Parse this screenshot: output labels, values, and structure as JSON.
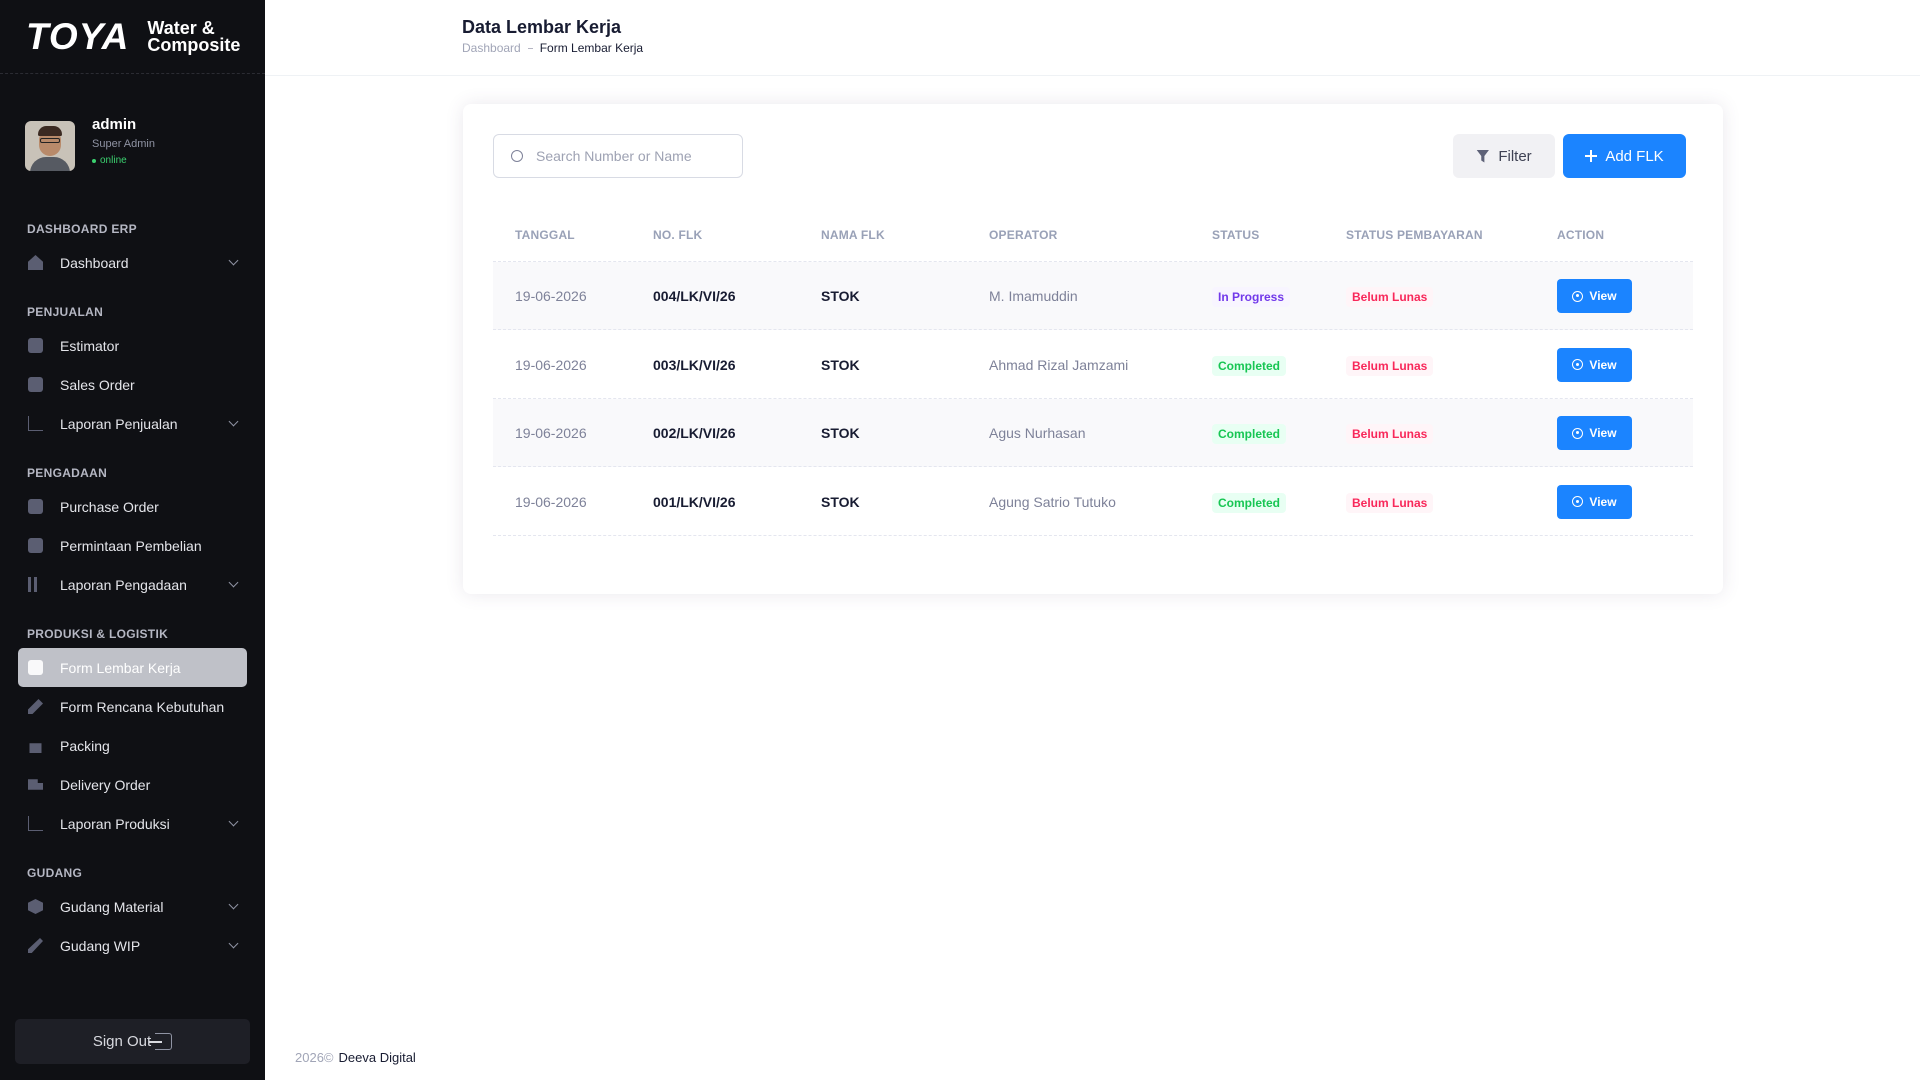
{
  "brand": {
    "logo": "TOYA",
    "sub_line1": "Water &",
    "sub_line2": "Composite"
  },
  "user": {
    "name": "admin",
    "role": "Super Admin",
    "status": "online"
  },
  "sidebar": {
    "sections": [
      {
        "title": "DASHBOARD ERP",
        "items": [
          {
            "label": "Dashboard",
            "icon": "home-icon",
            "chevron": true
          }
        ]
      },
      {
        "title": "PENJUALAN",
        "items": [
          {
            "label": "Estimator",
            "icon": "document-icon"
          },
          {
            "label": "Sales Order",
            "icon": "document-icon"
          },
          {
            "label": "Laporan Penjualan",
            "icon": "chart-line-icon",
            "chevron": true
          }
        ]
      },
      {
        "title": "PENGADAAN",
        "items": [
          {
            "label": "Purchase Order",
            "icon": "document-icon"
          },
          {
            "label": "Permintaan Pembelian",
            "icon": "document-icon"
          },
          {
            "label": "Laporan Pengadaan",
            "icon": "chart-bar-icon",
            "chevron": true
          }
        ]
      },
      {
        "title": "PRODUKSI & LOGISTIK",
        "items": [
          {
            "label": "Form Lembar Kerja",
            "icon": "edit-icon",
            "active": true
          },
          {
            "label": "Form Rencana Kebutuhan",
            "icon": "pen-icon"
          },
          {
            "label": "Packing",
            "icon": "lock-icon"
          },
          {
            "label": "Delivery Order",
            "icon": "truck-icon"
          },
          {
            "label": "Laporan Produksi",
            "icon": "chart-line-icon",
            "chevron": true
          }
        ]
      },
      {
        "title": "GUDANG",
        "items": [
          {
            "label": "Gudang Material",
            "icon": "cube-icon",
            "chevron": true
          },
          {
            "label": "Gudang WIP",
            "icon": "wrench-icon",
            "chevron": true
          }
        ]
      }
    ],
    "signout_label": "Sign Out"
  },
  "header": {
    "title": "Data Lembar Kerja",
    "breadcrumb": [
      "Dashboard",
      "Form Lembar Kerja"
    ]
  },
  "toolbar": {
    "search_placeholder": "Search Number or Name",
    "filter_label": "Filter",
    "add_label": "Add FLK"
  },
  "table": {
    "columns": [
      "TANGGAL",
      "NO. FLK",
      "NAMA FLK",
      "OPERATOR",
      "STATUS",
      "STATUS PEMBAYARAN",
      "ACTION"
    ],
    "rows": [
      {
        "tanggal": "19-06-2026",
        "no_flk": "004/LK/VI/26",
        "nama_flk": "STOK",
        "operator": "M. Imamuddin",
        "status": "In Progress",
        "pembayaran": "Belum Lunas",
        "action": "View"
      },
      {
        "tanggal": "19-06-2026",
        "no_flk": "003/LK/VI/26",
        "nama_flk": "STOK",
        "operator": "Ahmad Rizal Jamzami",
        "status": "Completed",
        "pembayaran": "Belum Lunas",
        "action": "View"
      },
      {
        "tanggal": "19-06-2026",
        "no_flk": "002/LK/VI/26",
        "nama_flk": "STOK",
        "operator": "Agus Nurhasan",
        "status": "Completed",
        "pembayaran": "Belum Lunas",
        "action": "View"
      },
      {
        "tanggal": "19-06-2026",
        "no_flk": "001/LK/VI/26",
        "nama_flk": "STOK",
        "operator": "Agung Satrio Tutuko",
        "status": "Completed",
        "pembayaran": "Belum Lunas",
        "action": "View"
      }
    ]
  },
  "footer": {
    "year": "2026©",
    "company": "Deeva Digital"
  },
  "colors": {
    "primary": "#1b84ff",
    "sidebar_bg": "#0f1014",
    "success": "#17c653",
    "danger": "#f8285a",
    "info": "#7239ea"
  }
}
